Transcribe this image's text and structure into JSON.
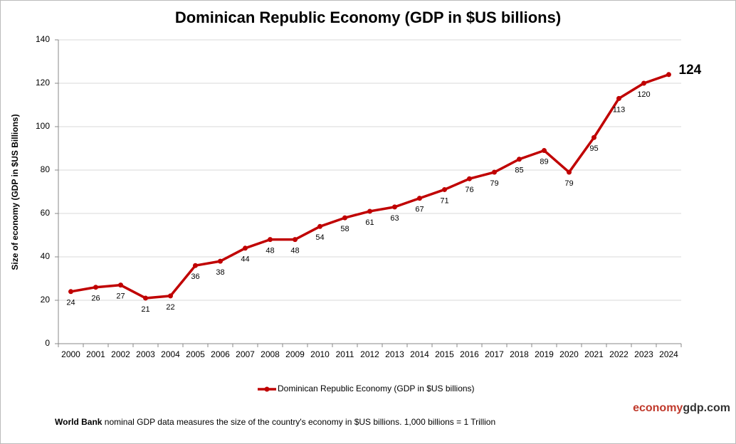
{
  "chart_data": {
    "type": "line",
    "title": "Dominican Republic Economy (GDP in $US billions)",
    "y_label": "Size of economy (GDP in $US Billions)",
    "categories": [
      "2000",
      "2001",
      "2002",
      "2003",
      "2004",
      "2005",
      "2006",
      "2007",
      "2008",
      "2009",
      "2010",
      "2011",
      "2012",
      "2013",
      "2014",
      "2015",
      "2016",
      "2017",
      "2018",
      "2019",
      "2020",
      "2021",
      "2022",
      "2023",
      "2024"
    ],
    "series": [
      {
        "name": "Dominican Republic Economy (GDP in $US billions)",
        "color": "#c00000",
        "values": [
          24,
          26,
          27,
          21,
          22,
          36,
          38,
          44,
          48,
          48,
          54,
          58,
          61,
          63,
          67,
          71,
          76,
          79,
          85,
          89,
          79,
          95,
          113,
          120,
          124
        ]
      }
    ],
    "ylim": [
      0,
      140
    ],
    "yticks": [
      0,
      20,
      40,
      60,
      80,
      100,
      120,
      140
    ],
    "grid": true,
    "source_bold": "World Bank",
    "source_text": "nominal GDP data  measures the size of the country's economy in $US billions. 1,000 billions = 1 Trillion",
    "brand_red": "economy",
    "brand_rest": "gdp.com"
  }
}
